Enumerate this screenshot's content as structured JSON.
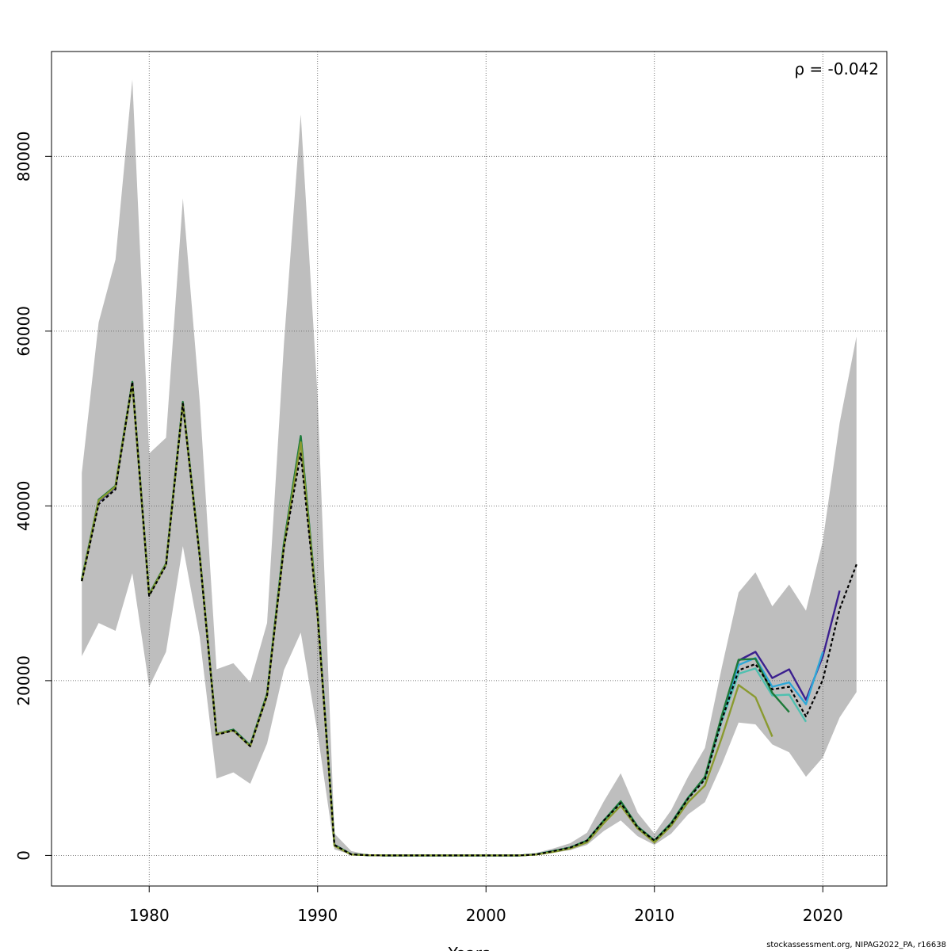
{
  "chart_data": {
    "type": "line",
    "title": "",
    "xlabel": "Years",
    "ylabel": "",
    "annotation": "ρ = -0.042",
    "xlim": [
      1974.2,
      2023.8
    ],
    "ylim": [
      -3500,
      92000
    ],
    "x_ticks": [
      1980,
      1990,
      2000,
      2010,
      2020
    ],
    "y_ticks": [
      0,
      20000,
      40000,
      60000,
      80000
    ],
    "grid": true,
    "legend": "none",
    "band": {
      "color": "#bebebe",
      "x": [
        1976,
        1977,
        1978,
        1979,
        1980,
        1981,
        1982,
        1983,
        1984,
        1985,
        1986,
        1987,
        1988,
        1989,
        1990,
        1991,
        1992,
        1993,
        1994,
        1995,
        1996,
        1997,
        1998,
        1999,
        2000,
        2001,
        2002,
        2003,
        2004,
        2005,
        2006,
        2007,
        2008,
        2009,
        2010,
        2011,
        2012,
        2013,
        2014,
        2015,
        2016,
        2017,
        2018,
        2019,
        2020,
        2021,
        2022
      ],
      "lower": [
        22800,
        26600,
        25700,
        32300,
        19300,
        23300,
        35400,
        25000,
        8800,
        9500,
        8200,
        12800,
        21200,
        25500,
        14000,
        700,
        80,
        10,
        0,
        0,
        0,
        0,
        0,
        0,
        0,
        0,
        0,
        50,
        300,
        600,
        1200,
        2800,
        4000,
        2200,
        1200,
        2500,
        4700,
        6100,
        10400,
        15200,
        15000,
        12700,
        11800,
        9000,
        11200,
        15800,
        18700
      ],
      "upper": [
        43800,
        61000,
        68200,
        88800,
        46000,
        47800,
        75200,
        52000,
        21300,
        22000,
        19800,
        26600,
        58500,
        84800,
        52500,
        2500,
        500,
        80,
        40,
        20,
        20,
        20,
        20,
        20,
        20,
        20,
        30,
        300,
        800,
        1400,
        2600,
        6200,
        9400,
        4900,
        2500,
        5200,
        9000,
        12300,
        21500,
        30100,
        32400,
        28500,
        31000,
        28000,
        36000,
        49500,
        59400
      ]
    },
    "series": [
      {
        "color": "#000000",
        "dashed": true,
        "x": [
          1976,
          1977,
          1978,
          1979,
          1980,
          1981,
          1982,
          1983,
          1984,
          1985,
          1986,
          1987,
          1988,
          1989,
          1990,
          1991,
          1992,
          1993,
          1994,
          1995,
          1996,
          1997,
          1998,
          1999,
          2000,
          2001,
          2002,
          2003,
          2004,
          2005,
          2006,
          2007,
          2008,
          2009,
          2010,
          2011,
          2012,
          2013,
          2014,
          2015,
          2016,
          2017,
          2018,
          2019,
          2020,
          2021,
          2022
        ],
        "y": [
          31400,
          40200,
          41900,
          54200,
          29700,
          33200,
          51700,
          34200,
          13800,
          14300,
          12500,
          18300,
          35200,
          46000,
          27500,
          1200,
          120,
          30,
          0,
          0,
          0,
          0,
          0,
          0,
          0,
          0,
          0,
          120,
          500,
          900,
          1700,
          4000,
          6000,
          3200,
          1700,
          3600,
          6500,
          8700,
          15500,
          21200,
          21900,
          19000,
          19300,
          15900,
          20100,
          28200,
          33300
        ]
      },
      {
        "color": "#3b1f8f",
        "dashed": false,
        "x": [
          1976,
          1977,
          1978,
          1979,
          1980,
          1981,
          1982,
          1983,
          1984,
          1985,
          1986,
          1987,
          1988,
          1989,
          1990,
          1991,
          1992,
          1993,
          1994,
          1995,
          1996,
          1997,
          1998,
          1999,
          2000,
          2001,
          2002,
          2003,
          2004,
          2005,
          2006,
          2007,
          2008,
          2009,
          2010,
          2011,
          2012,
          2013,
          2014,
          2015,
          2016,
          2017,
          2018,
          2019,
          2020,
          2021
        ],
        "y": [
          31500,
          40500,
          42100,
          54100,
          29800,
          33300,
          51800,
          34300,
          13900,
          14400,
          12600,
          18400,
          35500,
          47500,
          27700,
          1200,
          120,
          30,
          0,
          0,
          0,
          0,
          0,
          0,
          0,
          0,
          0,
          120,
          500,
          900,
          1700,
          4000,
          6100,
          3300,
          1700,
          3700,
          6600,
          8900,
          15800,
          22300,
          23300,
          20300,
          21300,
          17800,
          22800,
          30300
        ]
      },
      {
        "color": "#2ea8d8",
        "dashed": false,
        "x": [
          1976,
          1977,
          1978,
          1979,
          1980,
          1981,
          1982,
          1983,
          1984,
          1985,
          1986,
          1987,
          1988,
          1989,
          1990,
          1991,
          1992,
          1993,
          1994,
          1995,
          1996,
          1997,
          1998,
          1999,
          2000,
          2001,
          2002,
          2003,
          2004,
          2005,
          2006,
          2007,
          2008,
          2009,
          2010,
          2011,
          2012,
          2013,
          2014,
          2015,
          2016,
          2017,
          2018,
          2019,
          2020
        ],
        "y": [
          31500,
          40600,
          42200,
          54100,
          29800,
          33300,
          51800,
          34300,
          13900,
          14400,
          12600,
          18400,
          35600,
          47800,
          27700,
          1200,
          120,
          30,
          0,
          0,
          0,
          0,
          0,
          0,
          0,
          0,
          0,
          120,
          500,
          900,
          1700,
          4000,
          6100,
          3300,
          1700,
          3700,
          6600,
          8900,
          15700,
          21800,
          22600,
          19300,
          19800,
          17300,
          23300
        ]
      },
      {
        "color": "#4fc0b0",
        "dashed": false,
        "x": [
          1976,
          1977,
          1978,
          1979,
          1980,
          1981,
          1982,
          1983,
          1984,
          1985,
          1986,
          1987,
          1988,
          1989,
          1990,
          1991,
          1992,
          1993,
          1994,
          1995,
          1996,
          1997,
          1998,
          1999,
          2000,
          2001,
          2002,
          2003,
          2004,
          2005,
          2006,
          2007,
          2008,
          2009,
          2010,
          2011,
          2012,
          2013,
          2014,
          2015,
          2016,
          2017,
          2018,
          2019
        ],
        "y": [
          31500,
          40600,
          42200,
          54100,
          29800,
          33300,
          51800,
          34300,
          13900,
          14400,
          12600,
          18400,
          35600,
          47900,
          27700,
          1200,
          120,
          30,
          0,
          0,
          0,
          0,
          0,
          0,
          0,
          0,
          0,
          120,
          500,
          900,
          1700,
          4000,
          6100,
          3300,
          1700,
          3700,
          6600,
          8800,
          15400,
          20800,
          21400,
          18300,
          18400,
          15300
        ]
      },
      {
        "color": "#1e7a3a",
        "dashed": false,
        "x": [
          1976,
          1977,
          1978,
          1979,
          1980,
          1981,
          1982,
          1983,
          1984,
          1985,
          1986,
          1987,
          1988,
          1989,
          1990,
          1991,
          1992,
          1993,
          1994,
          1995,
          1996,
          1997,
          1998,
          1999,
          2000,
          2001,
          2002,
          2003,
          2004,
          2005,
          2006,
          2007,
          2008,
          2009,
          2010,
          2011,
          2012,
          2013,
          2014,
          2015,
          2016,
          2017,
          2018
        ],
        "y": [
          31600,
          40700,
          42300,
          54200,
          29900,
          33400,
          51900,
          34400,
          13900,
          14400,
          12600,
          18500,
          35700,
          48000,
          27800,
          1200,
          120,
          30,
          0,
          0,
          0,
          0,
          0,
          0,
          0,
          0,
          0,
          120,
          500,
          900,
          1700,
          4000,
          6200,
          3300,
          1700,
          3700,
          6600,
          9000,
          16000,
          22400,
          22500,
          18600,
          16400
        ]
      },
      {
        "color": "#8a9a30",
        "dashed": false,
        "x": [
          1976,
          1977,
          1978,
          1979,
          1980,
          1981,
          1982,
          1983,
          1984,
          1985,
          1986,
          1987,
          1988,
          1989,
          1990,
          1991,
          1992,
          1993,
          1994,
          1995,
          1996,
          1997,
          1998,
          1999,
          2000,
          2001,
          2002,
          2003,
          2004,
          2005,
          2006,
          2007,
          2008,
          2009,
          2010,
          2011,
          2012,
          2013,
          2014,
          2015,
          2016,
          2017
        ],
        "y": [
          31400,
          40600,
          42200,
          54000,
          29800,
          33300,
          51700,
          34300,
          13900,
          14300,
          12500,
          18300,
          35300,
          47300,
          27500,
          1100,
          100,
          30,
          0,
          0,
          0,
          0,
          0,
          0,
          0,
          0,
          0,
          100,
          400,
          800,
          1500,
          3700,
          5700,
          3100,
          1500,
          3400,
          6100,
          8000,
          13500,
          19500,
          18100,
          13600
        ]
      }
    ]
  },
  "footer": {
    "credit": "stockassessment.org, NIPAG2022_PA, r16638"
  }
}
